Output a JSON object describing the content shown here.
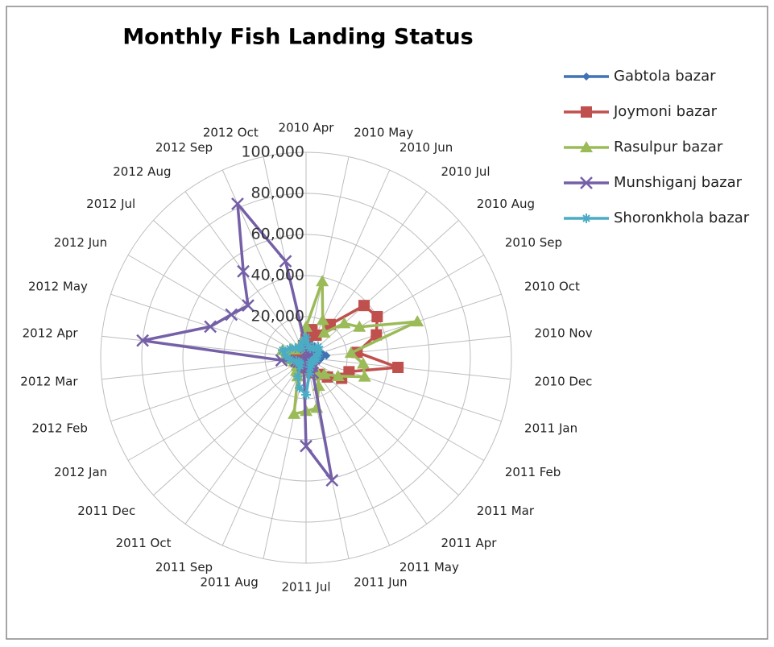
{
  "chart_data": {
    "type": "radar",
    "title": "Monthly Fish Landing Status",
    "categories": [
      "2010 Apr",
      "2010 May",
      "2010 Jun",
      "2010 Jul",
      "2010 Aug",
      "2010 Sep",
      "2010 Oct",
      "2010 Nov",
      "2010 Dec",
      "2011 Jan",
      "2011 Feb",
      "2011 Mar",
      "2011 Apr",
      "2011 May",
      "2011 Jun",
      "2011 Jul",
      "2011 Aug",
      "2011 Sep",
      "2011 Oct",
      "2011 Dec",
      "2012 Jan",
      "2012 Feb",
      "2012 Mar",
      "2012 Apr",
      "2012 May",
      "2012 Jun",
      "2012 Jul",
      "2012 Aug",
      "2012 Sep",
      "2012 Oct"
    ],
    "ylim": [
      0,
      100000
    ],
    "yticks": [
      {
        "value": 20000,
        "label": "20,000"
      },
      {
        "value": 40000,
        "label": "40,000"
      },
      {
        "value": 60000,
        "label": "60,000"
      },
      {
        "value": 80000,
        "label": "80,000"
      },
      {
        "value": 100000,
        "label": "100,000"
      }
    ],
    "grid": true,
    "legend": "right",
    "series": [
      {
        "name": "Gabtola bazar",
        "color": "#3f73b4",
        "marker": "diamond",
        "values": [
          12000,
          8000,
          6000,
          7000,
          5000,
          6000,
          8000,
          10000,
          7000,
          5000,
          4000,
          3000,
          3000,
          4000,
          5000,
          6000,
          5000,
          4000,
          3000,
          3000,
          4000,
          5000,
          6000,
          7000,
          8000,
          6000,
          5000,
          4000,
          5000,
          6000
        ]
      },
      {
        "name": "Joymoni bazar",
        "color": "#c0504d",
        "marker": "square",
        "values": [
          9000,
          14000,
          12000,
          20000,
          38000,
          40000,
          36000,
          25000,
          45000,
          22000,
          20000,
          14000,
          10000,
          8000,
          6000,
          5000,
          4000,
          4000,
          3000,
          3000,
          3000,
          4000,
          5000,
          4000,
          4000,
          3000,
          3000,
          3000,
          4000,
          6000
        ]
      },
      {
        "name": "Rasulpur bazar",
        "color": "#9bbb59",
        "marker": "triangle",
        "values": [
          15000,
          38000,
          20000,
          15000,
          25000,
          30000,
          57000,
          22000,
          28000,
          30000,
          18000,
          12000,
          10000,
          15000,
          25000,
          26000,
          28000,
          10000,
          8000,
          6000,
          5000,
          6000,
          8000,
          10000,
          12000,
          8000,
          6000,
          5000,
          6000,
          8000
        ]
      },
      {
        "name": "Munshiganj bazar",
        "color": "#7560a8",
        "marker": "x",
        "values": [
          5000,
          4000,
          3000,
          3000,
          4000,
          3000,
          3000,
          3000,
          4000,
          3000,
          3000,
          3000,
          5000,
          8000,
          61000,
          43000,
          5000,
          4000,
          3000,
          3000,
          4000,
          5000,
          12000,
          80000,
          49000,
          42000,
          38000,
          52000,
          82000,
          48000
        ]
      },
      {
        "name": "Shoronkhola bazar",
        "color": "#4bacc6",
        "marker": "star",
        "values": [
          10000,
          6000,
          5000,
          6000,
          8000,
          7000,
          6000,
          5000,
          5000,
          4000,
          4000,
          3000,
          4000,
          5000,
          8000,
          18000,
          15000,
          10000,
          5000,
          4000,
          4000,
          5000,
          8000,
          10000,
          12000,
          9000,
          7000,
          6000,
          5000,
          8000
        ]
      }
    ]
  }
}
